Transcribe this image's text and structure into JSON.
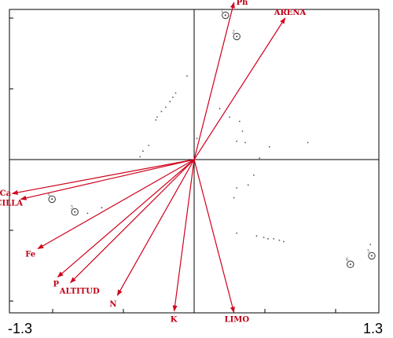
{
  "chart_data": {
    "type": "scatter",
    "xlim": [
      -1.3,
      1.3
    ],
    "ylim": [
      -1.2,
      1.2
    ],
    "x_tick_labels": [
      "-1.3",
      "1.3"
    ],
    "colors": {
      "vector": "#d0001c",
      "frame": "#000000",
      "species": "#555555",
      "site": "#333333"
    },
    "vectors": [
      {
        "label": "Ph",
        "x": 0.28,
        "y": 1.11
      },
      {
        "label": "ARENA",
        "x": 0.64,
        "y": 1.0
      },
      {
        "label": "Ca",
        "x": -1.28,
        "y": -0.24
      },
      {
        "label": "ARCILLA",
        "x": -1.22,
        "y": -0.28
      },
      {
        "label": "Fe",
        "x": -1.1,
        "y": -0.63
      },
      {
        "label": "P",
        "x": -0.96,
        "y": -0.83
      },
      {
        "label": "ALTITUD",
        "x": -0.87,
        "y": -0.87
      },
      {
        "label": "N",
        "x": -0.54,
        "y": -0.96
      },
      {
        "label": "K",
        "x": -0.14,
        "y": -1.07
      },
      {
        "label": "LIMO",
        "x": 0.28,
        "y": -1.08
      }
    ],
    "sites": [
      {
        "label": "1",
        "x": 0.22,
        "y": 1.02
      },
      {
        "label": "2",
        "x": 0.3,
        "y": 0.87
      },
      {
        "label": "4",
        "x": -1.0,
        "y": -0.28
      },
      {
        "label": "3",
        "x": -0.84,
        "y": -0.37
      },
      {
        "label": "5",
        "x": 1.25,
        "y": -0.68
      },
      {
        "label": "6",
        "x": 1.1,
        "y": -0.74
      }
    ],
    "species_points": [
      {
        "x": -0.05,
        "y": 0.59
      },
      {
        "x": -0.13,
        "y": 0.47
      },
      {
        "x": -0.15,
        "y": 0.44
      },
      {
        "x": -0.17,
        "y": 0.41
      },
      {
        "x": -0.2,
        "y": 0.37
      },
      {
        "x": -0.23,
        "y": 0.34
      },
      {
        "x": -0.26,
        "y": 0.3
      },
      {
        "x": -0.27,
        "y": 0.28
      },
      {
        "x": -0.32,
        "y": 0.1
      },
      {
        "x": -0.36,
        "y": 0.06
      },
      {
        "x": -0.38,
        "y": 0.02
      },
      {
        "x": 0.02,
        "y": 0.15
      },
      {
        "x": 0.18,
        "y": 0.36
      },
      {
        "x": 0.25,
        "y": 0.3
      },
      {
        "x": 0.32,
        "y": 0.27
      },
      {
        "x": 0.34,
        "y": 0.2
      },
      {
        "x": 0.3,
        "y": 0.13
      },
      {
        "x": 0.36,
        "y": 0.12
      },
      {
        "x": 0.53,
        "y": 0.09
      },
      {
        "x": 0.8,
        "y": 0.12
      },
      {
        "x": 0.46,
        "y": 0.01
      },
      {
        "x": 0.42,
        "y": -0.11
      },
      {
        "x": 0.38,
        "y": -0.18
      },
      {
        "x": 0.3,
        "y": -0.2
      },
      {
        "x": 0.28,
        "y": -0.27
      },
      {
        "x": 0.3,
        "y": -0.52
      },
      {
        "x": 0.44,
        "y": -0.54
      },
      {
        "x": 0.49,
        "y": -0.55
      },
      {
        "x": 0.52,
        "y": -0.56
      },
      {
        "x": 0.56,
        "y": -0.56
      },
      {
        "x": 0.6,
        "y": -0.57
      },
      {
        "x": 0.63,
        "y": -0.58
      },
      {
        "x": 1.24,
        "y": -0.6
      },
      {
        "x": -0.65,
        "y": -0.34
      },
      {
        "x": -0.75,
        "y": -0.38
      }
    ]
  }
}
